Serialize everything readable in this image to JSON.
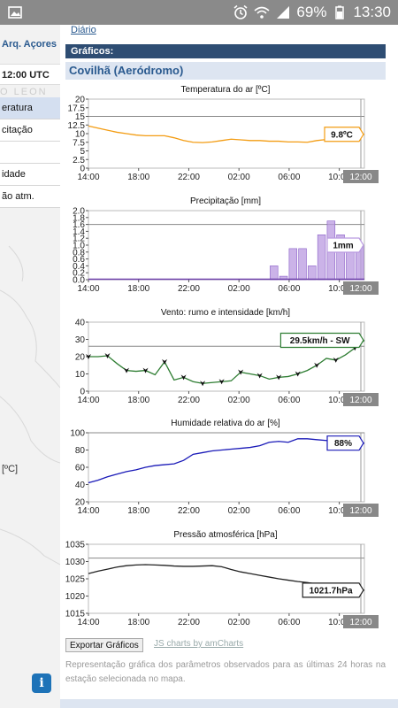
{
  "status_bar": {
    "battery": "69%",
    "time": "13:30"
  },
  "sidebar": {
    "link": "Arq. Açores",
    "time": "12:00 UTC",
    "map_label": "O LEON",
    "menu": [
      {
        "label": "eratura",
        "active": true
      },
      {
        "label": "citação",
        "active": false
      },
      {
        "label": "",
        "active": false
      },
      {
        "label": "idade",
        "active": false
      },
      {
        "label": "ão atm.",
        "active": false
      }
    ],
    "unit": "[ºC]"
  },
  "main": {
    "tab": "Diário",
    "section_title": "Gráficos:",
    "station": "Covilhã (Aeródromo)",
    "export_button": "Exportar Gráficos",
    "credit_link": "JS charts by amCharts",
    "footnote": "Representação gráfica dos parâmetros observados para as últimas 24 horas na estação selecionada no mapa."
  },
  "colors": {
    "temperature": "#f39c12",
    "precipitation": "#b99ae0",
    "wind": "#2e7d32",
    "humidity": "#1a1ab8",
    "pressure": "#222222",
    "header": "#2e4d73"
  },
  "charts": [
    {
      "key": "temp",
      "type": "line",
      "title": "Temperatura do ar [ºC]",
      "ylim": [
        0,
        20
      ],
      "yticks": [
        0,
        2.5,
        5,
        7.5,
        10,
        12.5,
        15,
        17.5,
        20
      ],
      "ytick_labels": [
        "0",
        "2.5",
        "5",
        "7.5",
        "10",
        "12.5",
        "15",
        "17.5",
        "20"
      ],
      "xtick_labels": [
        "14:00",
        "18:00",
        "22:00",
        "02:00",
        "06:00",
        "10:00"
      ],
      "cursor_label": "12:00",
      "tooltip": "9.8ºC",
      "hline": 15,
      "values": [
        12.2,
        11.6,
        11,
        10.4,
        10,
        9.6,
        9.4,
        9.4,
        9.4,
        8.8,
        8,
        7.5,
        7.4,
        7.6,
        8,
        8.4,
        8.2,
        8,
        8,
        7.8,
        7.8,
        7.6,
        7.6,
        7.5,
        8,
        8.3,
        8.6,
        9,
        9.4,
        9.8
      ]
    },
    {
      "key": "prec",
      "type": "bar",
      "title": "Precipitação [mm]",
      "ylim": [
        0,
        2
      ],
      "yticks": [
        0,
        0.2,
        0.4,
        0.6,
        0.8,
        1,
        1.2,
        1.4,
        1.6,
        1.8,
        2
      ],
      "ytick_labels": [
        "0.0",
        "0.2",
        "0.4",
        "0.6",
        "0.8",
        "1.0",
        "1.2",
        "1.4",
        "1.6",
        "1.8",
        "2.0"
      ],
      "xtick_labels": [
        "14:00",
        "18:00",
        "22:00",
        "02:00",
        "06:00",
        "10:00"
      ],
      "cursor_label": "12:00",
      "tooltip": "1mm",
      "hline": 1.6,
      "values": [
        0,
        0,
        0,
        0,
        0,
        0,
        0,
        0,
        0,
        0,
        0,
        0,
        0,
        0,
        0,
        0,
        0,
        0,
        0,
        0.4,
        0.1,
        0.9,
        0.9,
        0.4,
        1.3,
        1.7,
        1.3,
        1.1,
        1.0
      ]
    },
    {
      "key": "wind",
      "type": "line",
      "title": "Vento: rumo e intensidade [km/h]",
      "ylim": [
        0,
        40
      ],
      "yticks": [
        0,
        10,
        20,
        30,
        40
      ],
      "ytick_labels": [
        "0",
        "10",
        "20",
        "30",
        "40"
      ],
      "xtick_labels": [
        "14:00",
        "18:00",
        "22:00",
        "02:00",
        "06:00",
        "10:00"
      ],
      "cursor_label": "12:00",
      "tooltip": "29.5km/h - SW",
      "hline": 26,
      "values": [
        20,
        20,
        20.5,
        16,
        12,
        11.5,
        12,
        9.5,
        17,
        6.5,
        8,
        5.5,
        4.5,
        5,
        5.5,
        6,
        11,
        10,
        9,
        7,
        8,
        8.5,
        10,
        12,
        15,
        19,
        18,
        21,
        25,
        29.5
      ]
    },
    {
      "key": "hum",
      "type": "line",
      "title": "Humidade relativa do ar [%]",
      "ylim": [
        20,
        100
      ],
      "yticks": [
        20,
        40,
        60,
        80,
        100
      ],
      "ytick_labels": [
        "20",
        "40",
        "60",
        "80",
        "100"
      ],
      "xtick_labels": [
        "14:00",
        "18:00",
        "22:00",
        "02:00",
        "06:00",
        "10:00"
      ],
      "cursor_label": "12:00",
      "tooltip": "88%",
      "hline": 100,
      "values": [
        42,
        45,
        49,
        52,
        55,
        57,
        60,
        62,
        63,
        64,
        68,
        75,
        77,
        79,
        80,
        81,
        82,
        83,
        85,
        89,
        90,
        89,
        93,
        93,
        92,
        91,
        90,
        89,
        88,
        88
      ]
    },
    {
      "key": "pres",
      "type": "line",
      "title": "Pressão atmosférica [hPa]",
      "ylim": [
        1015,
        1035
      ],
      "yticks": [
        1015,
        1020,
        1025,
        1030,
        1035
      ],
      "ytick_labels": [
        "1015",
        "1020",
        "1025",
        "1030",
        "1035"
      ],
      "xtick_labels": [
        "14:00",
        "18:00",
        "22:00",
        "02:00",
        "06:00",
        "10:00"
      ],
      "cursor_label": "12:00",
      "tooltip": "1021.7hPa",
      "hline": 1031,
      "values": [
        1026.5,
        1027.2,
        1027.8,
        1028.4,
        1028.8,
        1029,
        1029.1,
        1029,
        1028.9,
        1028.7,
        1028.6,
        1028.6,
        1028.7,
        1028.8,
        1028.5,
        1027.7,
        1027,
        1026.5,
        1026,
        1025.5,
        1025,
        1024.6,
        1024.2,
        1023.9,
        1023.5,
        1023.1,
        1022.7,
        1022.3,
        1022,
        1021.7
      ]
    }
  ]
}
